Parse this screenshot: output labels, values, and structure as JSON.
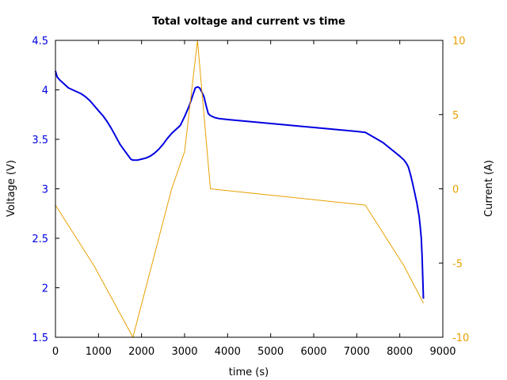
{
  "chart_data": {
    "type": "line",
    "title": "Total voltage and current vs time",
    "xlabel": "time (s)",
    "ylabel_left": "Voltage (V)",
    "ylabel_right": "Current (A)",
    "xlim": [
      0,
      9000
    ],
    "ylim_left": [
      1.5,
      4.5
    ],
    "ylim_right": [
      -10,
      10
    ],
    "x_ticks": [
      "0",
      "1000",
      "2000",
      "3000",
      "4000",
      "5000",
      "6000",
      "7000",
      "8000",
      "9000"
    ],
    "y_left_ticks": [
      "1.5",
      "2",
      "2.5",
      "3",
      "3.5",
      "4",
      "4.5"
    ],
    "y_right_ticks": [
      "-10",
      "-5",
      "0",
      "5",
      "10"
    ],
    "grid": false,
    "colors": {
      "voltage": "#0000e0",
      "current": "#e8a000",
      "left_axis": "#0000e0",
      "right_axis": "#e8a000"
    },
    "series": [
      {
        "axis": "left",
        "x": [
          0,
          40,
          100,
          200,
          300,
          400,
          500,
          600,
          700,
          800,
          900,
          1000,
          1100,
          1200,
          1300,
          1400,
          1500,
          1600,
          1700,
          1750,
          1800,
          1900,
          2000,
          2100,
          2200,
          2300,
          2400,
          2500,
          2600,
          2700,
          2800,
          2900,
          3000,
          3100,
          3150,
          3200,
          3250,
          3300,
          3350,
          3400,
          3450,
          3500,
          3550,
          3600,
          3700,
          3800,
          4000,
          4500,
          5000,
          5500,
          6000,
          6500,
          7000,
          7200,
          7400,
          7600,
          7800,
          8000,
          8100,
          8150,
          8200,
          8250,
          8300,
          8350,
          8400,
          8450,
          8480,
          8500,
          8520,
          8550
        ],
        "y": [
          4.19,
          4.13,
          4.1,
          4.06,
          4.02,
          4.0,
          3.98,
          3.96,
          3.93,
          3.89,
          3.84,
          3.79,
          3.74,
          3.68,
          3.61,
          3.53,
          3.45,
          3.39,
          3.33,
          3.3,
          3.29,
          3.29,
          3.3,
          3.31,
          3.33,
          3.36,
          3.4,
          3.45,
          3.51,
          3.56,
          3.6,
          3.64,
          3.73,
          3.83,
          3.89,
          3.96,
          4.02,
          4.03,
          4.02,
          3.98,
          3.93,
          3.84,
          3.76,
          3.74,
          3.72,
          3.71,
          3.7,
          3.68,
          3.66,
          3.64,
          3.62,
          3.6,
          3.58,
          3.57,
          3.52,
          3.47,
          3.4,
          3.33,
          3.29,
          3.26,
          3.22,
          3.14,
          3.05,
          2.95,
          2.85,
          2.72,
          2.6,
          2.5,
          2.3,
          1.89
        ]
      },
      {
        "axis": "right",
        "x": [
          0,
          900,
          1800,
          2700,
          3000,
          3300,
          3600,
          7200,
          8100,
          8550
        ],
        "y": [
          -1.1,
          -5.2,
          -10,
          0,
          2.5,
          10,
          0,
          -1.1,
          -5.2,
          -7.7
        ]
      }
    ]
  }
}
